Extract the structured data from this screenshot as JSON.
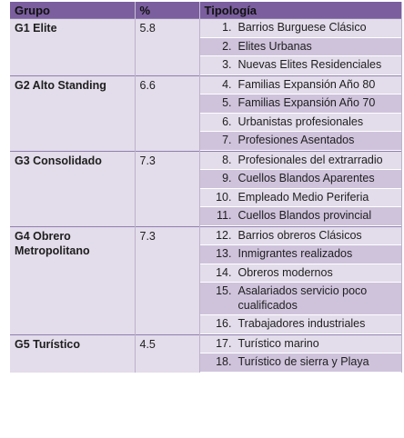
{
  "headers": {
    "group": "Grupo",
    "pct": "%",
    "typology": "Tipología"
  },
  "groups": [
    {
      "name": "G1 Elite",
      "pct": "5.8",
      "items": [
        {
          "num": "1.",
          "label": "Barrios Burguese Clásico"
        },
        {
          "num": "2.",
          "label": "Elites Urbanas"
        },
        {
          "num": "3.",
          "label": "Nuevas Elites Residenciales"
        }
      ]
    },
    {
      "name": "G2 Alto Standing",
      "pct": "6.6",
      "items": [
        {
          "num": "4.",
          "label": "Familias Expansión Año 80"
        },
        {
          "num": "5.",
          "label": "Familias Expansión Año 70"
        },
        {
          "num": "6.",
          "label": "Urbanistas profesionales"
        },
        {
          "num": "7.",
          "label": "Profesiones Asentados"
        }
      ]
    },
    {
      "name": "G3 Consolidado",
      "pct": "7.3",
      "items": [
        {
          "num": "8.",
          "label": "Profesionales del extrarradio"
        },
        {
          "num": "9.",
          "label": "Cuellos Blandos Aparentes"
        },
        {
          "num": "10.",
          "label": "Empleado Medio Periferia"
        },
        {
          "num": "11.",
          "label": "Cuellos Blandos provincial"
        }
      ]
    },
    {
      "name": "G4 Obrero Metropolitano",
      "pct": "7.3",
      "items": [
        {
          "num": "12.",
          "label": "Barrios obreros Clásicos"
        },
        {
          "num": "13.",
          "label": "Inmigrantes realizados"
        },
        {
          "num": "14.",
          "label": "Obreros modernos"
        },
        {
          "num": "15.",
          "label": "Asalariados servicio poco cualificados"
        },
        {
          "num": "16.",
          "label": "Trabajadores industriales"
        }
      ]
    },
    {
      "name": "G5 Turístico",
      "pct": "4.5",
      "items": [
        {
          "num": "17.",
          "label": "Turístico marino"
        },
        {
          "num": "18.",
          "label": "Turístico de sierra y Playa"
        }
      ]
    }
  ]
}
